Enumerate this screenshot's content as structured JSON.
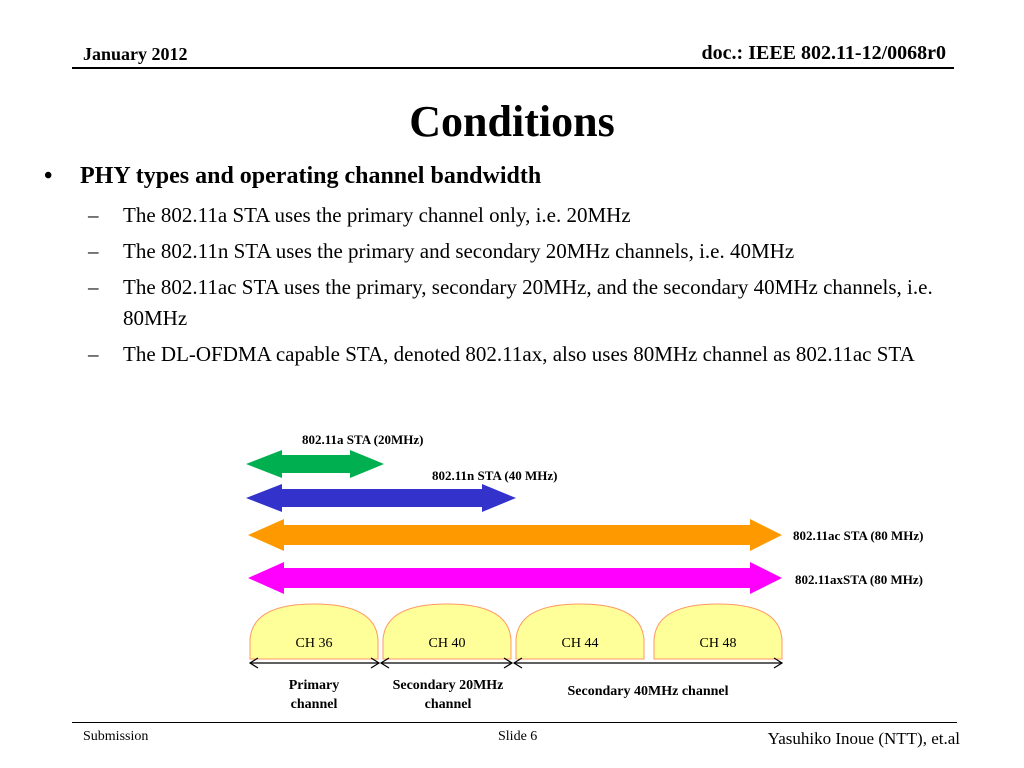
{
  "header": {
    "date": "January 2012",
    "doc_id": "doc.: IEEE 802.11-12/0068r0"
  },
  "title": "Conditions",
  "bullet": {
    "heading": "PHY types and operating channel bandwidth",
    "bullet_mark": "•",
    "sub_mark": "–",
    "items": [
      "The 802.11a STA uses the primary channel only, i.e. 20MHz",
      "The 802.11n STA uses the primary and secondary 20MHz channels, i.e. 40MHz",
      "The 802.11ac STA uses the primary, secondary 20MHz, and the secondary 40MHz channels, i.e. 80MHz",
      "The DL-OFDMA capable STA, denoted 802.11ax, also uses 80MHz channel as 802.11ac STA"
    ]
  },
  "diagram": {
    "arrows": [
      {
        "label": "802.11a STA  (20MHz)",
        "color": "#00b050"
      },
      {
        "label": "802.11n STA (40 MHz)",
        "color": "#3333cc"
      },
      {
        "label": "802.11ac STA (80 MHz)",
        "color": "#ff9900"
      },
      {
        "label": "802.11axSTA (80 MHz)",
        "color": "#ff00ff"
      }
    ],
    "channels": [
      "CH 36",
      "CH 40",
      "CH 44",
      "CH 48"
    ],
    "channel_fill": "#ffff99",
    "channel_stroke": "#ff9966",
    "spans": [
      {
        "text_line1": "Primary",
        "text_line2": "channel"
      },
      {
        "text_line1": "Secondary 20MHz",
        "text_line2": "channel"
      },
      {
        "text_line1": "Secondary 40MHz channel",
        "text_line2": ""
      }
    ]
  },
  "footer": {
    "submission": "Submission",
    "slide": "Slide 6",
    "author": "Yasuhiko Inoue (NTT), et.al"
  }
}
